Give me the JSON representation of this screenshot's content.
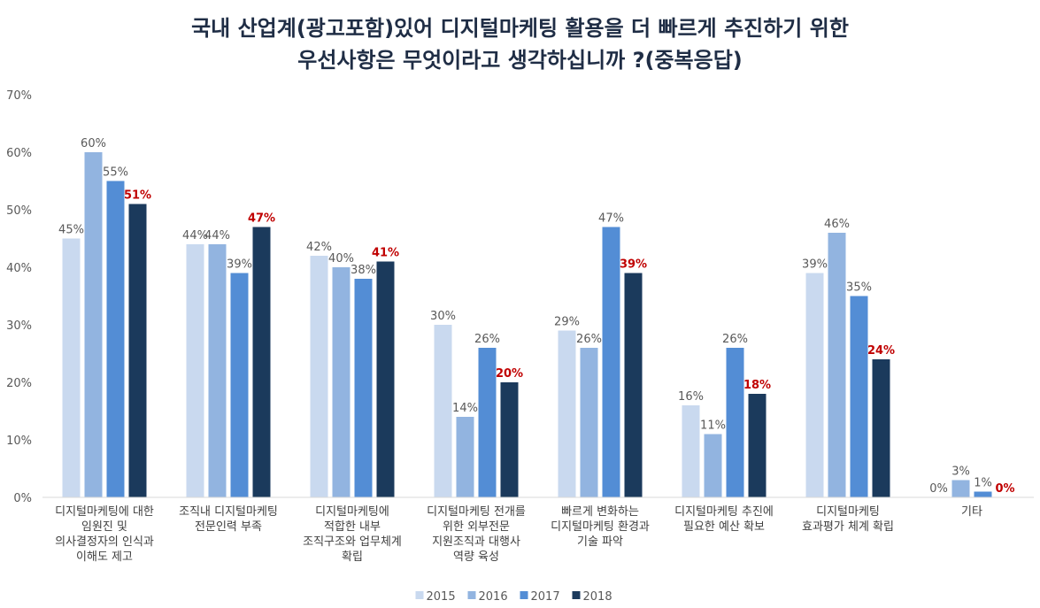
{
  "chart_data": {
    "type": "bar",
    "title": [
      "국내 산업계(광고포함)있어 디지털마케팅 활용을 더 빠르게 추진하기 위한",
      "우선사항은 무엇이라고 생각하십니까 ?(중복응답)"
    ],
    "categories": [
      [
        "디지털마케팅에 대한",
        "임원진 및",
        "의사결정자의 인식과",
        "이해도 제고"
      ],
      [
        "조직내 디지털마케팅",
        "전문인력 부족"
      ],
      [
        "디지털마케팅에",
        "적합한 내부",
        "조직구조와 업무체계",
        "확립"
      ],
      [
        "디지털마케팅 전개를",
        "위한 외부전문",
        "지원조직과 대행사",
        "역량 육성"
      ],
      [
        "빠르게 변화하는",
        "디지털마케팅 환경과",
        "기술 파악"
      ],
      [
        "디지털마케팅 추진에",
        "필요한 예산 확보"
      ],
      [
        "디지털마케팅",
        "효과평가 체계 확립"
      ],
      [
        "기타"
      ]
    ],
    "series": [
      {
        "name": "2015",
        "color": "#c9d9ef",
        "values": [
          45,
          44,
          42,
          30,
          29,
          16,
          39,
          0
        ]
      },
      {
        "name": "2016",
        "color": "#92b4e0",
        "values": [
          60,
          44,
          40,
          14,
          26,
          11,
          46,
          3
        ]
      },
      {
        "name": "2017",
        "color": "#538dd5",
        "values": [
          55,
          39,
          38,
          26,
          47,
          26,
          35,
          1
        ]
      },
      {
        "name": "2018",
        "color": "#1b3a5c",
        "values": [
          51,
          47,
          41,
          20,
          39,
          18,
          24,
          0
        ]
      }
    ],
    "highlight_series": "2018",
    "highlight_label_color": "#c00000",
    "value_suffix": "%",
    "ylim": [
      0,
      70
    ],
    "yticks": [
      "0%",
      "10%",
      "20%",
      "30%",
      "40%",
      "50%",
      "60%",
      "70%"
    ],
    "grid": false,
    "legend": "bottom-center"
  }
}
